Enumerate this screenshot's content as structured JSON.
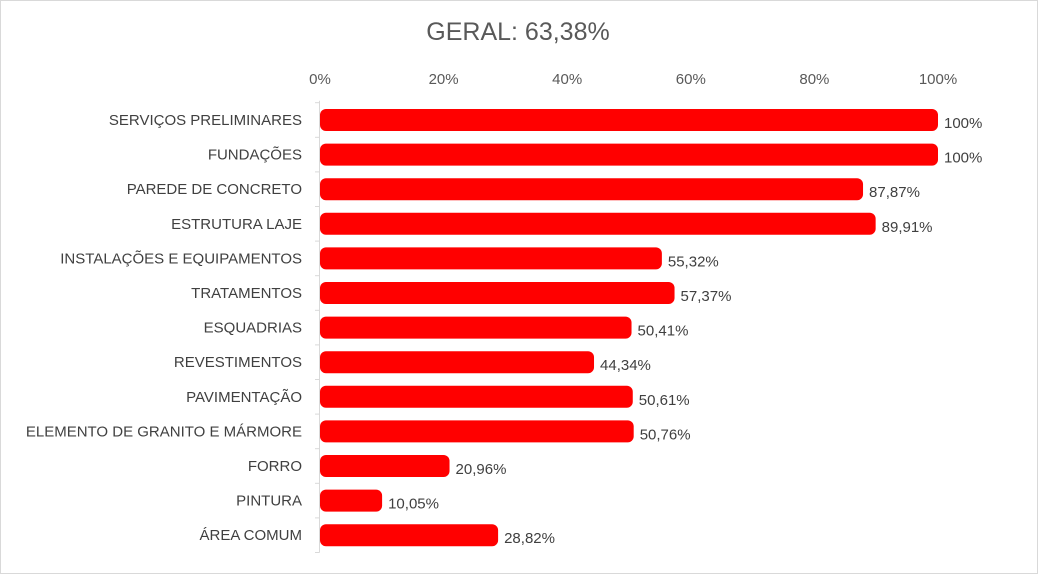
{
  "chart_data": {
    "type": "bar",
    "orientation": "horizontal",
    "title": "GERAL: 63,38%",
    "categories": [
      "SERVIÇOS PRELIMINARES",
      "FUNDAÇÕES",
      "PAREDE DE CONCRETO",
      "ESTRUTURA LAJE",
      "INSTALAÇÕES E EQUIPAMENTOS",
      "TRATAMENTOS",
      "ESQUADRIAS",
      "REVESTIMENTOS",
      "PAVIMENTAÇÃO",
      "ELEMENTO DE GRANITO E MÁRMORE",
      "FORRO",
      "PINTURA",
      "ÁREA COMUM"
    ],
    "values": [
      100,
      100,
      87.87,
      89.91,
      55.32,
      57.37,
      50.41,
      44.34,
      50.61,
      50.76,
      20.96,
      10.05,
      28.82
    ],
    "data_labels": [
      "100%",
      "100%",
      "87,87%",
      "89,91%",
      "55,32%",
      "57,37%",
      "50,41%",
      "44,34%",
      "50,61%",
      "50,76%",
      "20,96%",
      "10,05%",
      "28,82%"
    ],
    "xlim": [
      0,
      100
    ],
    "x_ticks": [
      0,
      20,
      40,
      60,
      80,
      100
    ],
    "x_tick_labels": [
      "0%",
      "20%",
      "40%",
      "60%",
      "80%",
      "100%"
    ],
    "axis_position": "top",
    "grid": false,
    "legend": "none",
    "bar_color": "#ff0000"
  }
}
